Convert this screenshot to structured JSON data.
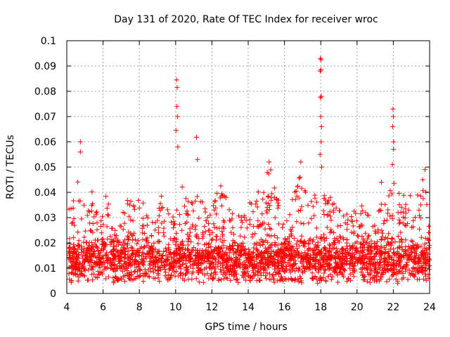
{
  "chart_data": {
    "type": "scatter",
    "title": "Day 131 of 2020, Rate Of TEC Index for receiver wroc",
    "xlabel": "GPS time / hours",
    "ylabel": "ROTI / TECUs",
    "xlim": [
      4,
      24
    ],
    "ylim": [
      0,
      0.1
    ],
    "grid": true,
    "marker": "+",
    "color": "#ff0000",
    "x_ticks": [
      4,
      6,
      8,
      10,
      12,
      14,
      16,
      18,
      20,
      22,
      24
    ],
    "x_tick_labels": [
      "4",
      "6",
      "8",
      "10",
      "12",
      "14",
      "16",
      "18",
      "20",
      "22",
      "24"
    ],
    "y_ticks": [
      0,
      0.01,
      0.02,
      0.03,
      0.04,
      0.05,
      0.06,
      0.07,
      0.08,
      0.09,
      0.1
    ],
    "y_tick_labels": [
      "0",
      "0.01",
      "0.02",
      "0.03",
      "0.04",
      "0.05",
      "0.06",
      "0.07",
      "0.08",
      "0.09",
      "0.1"
    ],
    "series": [
      {
        "name": "ROTI",
        "density": {
          "x_range": [
            4.1,
            24
          ],
          "points_per_hour": 140,
          "baseline": 0.013,
          "typical_spread": 0.009,
          "floor": 0.004
        },
        "envelope": [
          {
            "x": 4.2,
            "ymax": 0.035
          },
          {
            "x": 4.6,
            "ymax": 0.045
          },
          {
            "x": 4.8,
            "ymax": 0.039
          },
          {
            "x": 5.2,
            "ymax": 0.033
          },
          {
            "x": 5.4,
            "ymax": 0.041
          },
          {
            "x": 5.8,
            "ymax": 0.028
          },
          {
            "x": 6.2,
            "ymax": 0.04
          },
          {
            "x": 6.6,
            "ymax": 0.024
          },
          {
            "x": 7.0,
            "ymax": 0.032
          },
          {
            "x": 7.4,
            "ymax": 0.038
          },
          {
            "x": 7.8,
            "ymax": 0.043
          },
          {
            "x": 8.2,
            "ymax": 0.041
          },
          {
            "x": 8.6,
            "ymax": 0.028
          },
          {
            "x": 9.2,
            "ymax": 0.039
          },
          {
            "x": 9.8,
            "ymax": 0.03
          },
          {
            "x": 10.3,
            "ymax": 0.045
          },
          {
            "x": 10.8,
            "ymax": 0.035
          },
          {
            "x": 11.3,
            "ymax": 0.042
          },
          {
            "x": 11.8,
            "ymax": 0.03
          },
          {
            "x": 12.4,
            "ymax": 0.044
          },
          {
            "x": 13.0,
            "ymax": 0.035
          },
          {
            "x": 13.6,
            "ymax": 0.03
          },
          {
            "x": 14.2,
            "ymax": 0.038
          },
          {
            "x": 14.8,
            "ymax": 0.043
          },
          {
            "x": 15.2,
            "ymax": 0.052
          },
          {
            "x": 15.8,
            "ymax": 0.036
          },
          {
            "x": 16.4,
            "ymax": 0.038
          },
          {
            "x": 16.9,
            "ymax": 0.048
          },
          {
            "x": 17.4,
            "ymax": 0.035
          },
          {
            "x": 17.9,
            "ymax": 0.045
          },
          {
            "x": 18.4,
            "ymax": 0.039
          },
          {
            "x": 19.0,
            "ymax": 0.035
          },
          {
            "x": 19.6,
            "ymax": 0.032
          },
          {
            "x": 20.2,
            "ymax": 0.036
          },
          {
            "x": 20.8,
            "ymax": 0.03
          },
          {
            "x": 21.4,
            "ymax": 0.036
          },
          {
            "x": 21.9,
            "ymax": 0.045
          },
          {
            "x": 22.6,
            "ymax": 0.04
          },
          {
            "x": 23.2,
            "ymax": 0.038
          },
          {
            "x": 23.7,
            "ymax": 0.049
          },
          {
            "x": 24.0,
            "ymax": 0.026
          }
        ],
        "outliers": [
          {
            "x": 4.75,
            "y": 0.06
          },
          {
            "x": 4.75,
            "y": 0.056
          },
          {
            "x": 10.05,
            "y": 0.0845
          },
          {
            "x": 10.08,
            "y": 0.0815
          },
          {
            "x": 10.07,
            "y": 0.074
          },
          {
            "x": 10.1,
            "y": 0.07
          },
          {
            "x": 10.02,
            "y": 0.0645
          },
          {
            "x": 10.12,
            "y": 0.058
          },
          {
            "x": 11.15,
            "y": 0.0618
          },
          {
            "x": 11.2,
            "y": 0.053
          },
          {
            "x": 15.15,
            "y": 0.052
          },
          {
            "x": 16.9,
            "y": 0.052
          },
          {
            "x": 17.98,
            "y": 0.093
          },
          {
            "x": 18.02,
            "y": 0.0925
          },
          {
            "x": 17.97,
            "y": 0.088
          },
          {
            "x": 18.01,
            "y": 0.0885
          },
          {
            "x": 17.98,
            "y": 0.0775
          },
          {
            "x": 18.03,
            "y": 0.078
          },
          {
            "x": 18.0,
            "y": 0.07
          },
          {
            "x": 18.04,
            "y": 0.066
          },
          {
            "x": 18.02,
            "y": 0.06
          },
          {
            "x": 17.96,
            "y": 0.055
          },
          {
            "x": 18.05,
            "y": 0.05
          },
          {
            "x": 21.98,
            "y": 0.073
          },
          {
            "x": 22.0,
            "y": 0.07
          },
          {
            "x": 21.97,
            "y": 0.066
          },
          {
            "x": 22.02,
            "y": 0.06
          },
          {
            "x": 22.01,
            "y": 0.057
          },
          {
            "x": 21.95,
            "y": 0.051
          },
          {
            "x": 21.35,
            "y": 0.044
          },
          {
            "x": 23.75,
            "y": 0.049
          }
        ]
      }
    ]
  }
}
